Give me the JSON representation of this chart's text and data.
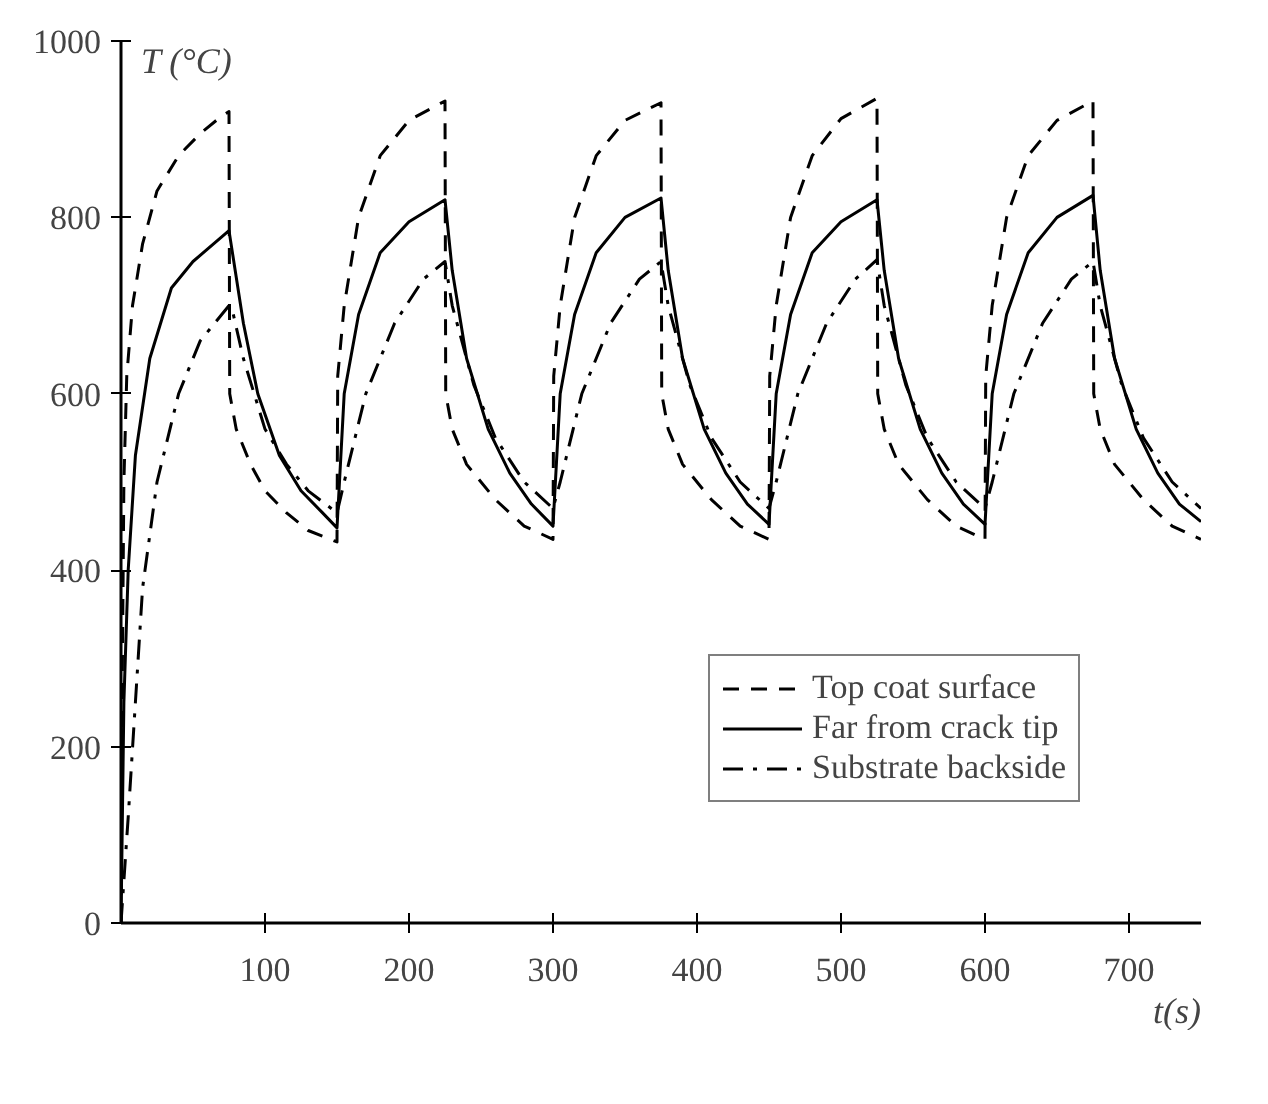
{
  "chart_data": {
    "type": "line",
    "xlabel": "t(s)",
    "ylabel": "T (°C)",
    "xlim": [
      0,
      750
    ],
    "ylim": [
      0,
      1000
    ],
    "xticks": [
      100,
      200,
      300,
      400,
      500,
      600,
      700
    ],
    "yticks": [
      0,
      200,
      400,
      600,
      800,
      1000
    ],
    "grid": false,
    "legend": "bottom right",
    "series": [
      {
        "name": "Top coat surface",
        "color": "#000000",
        "line_style": "dashed",
        "x": [
          0,
          1,
          2,
          4,
          8,
          15,
          25,
          40,
          55,
          70,
          75,
          75.5,
          80,
          90,
          100,
          115,
          130,
          150,
          150.5,
          155,
          165,
          180,
          200,
          225,
          225.5,
          230,
          240,
          260,
          280,
          300,
          300.5,
          305,
          315,
          330,
          350,
          375,
          375.5,
          380,
          390,
          410,
          430,
          450,
          450.5,
          455,
          465,
          480,
          500,
          525,
          525.5,
          530,
          540,
          560,
          580,
          600,
          600.5,
          605,
          615,
          630,
          650,
          675,
          675.5,
          680,
          690,
          710,
          730,
          750
        ],
        "values": [
          0,
          300,
          500,
          620,
          700,
          770,
          830,
          870,
          895,
          915,
          920,
          600,
          560,
          520,
          490,
          465,
          445,
          432,
          620,
          700,
          800,
          870,
          910,
          932,
          600,
          560,
          520,
          480,
          450,
          435,
          620,
          700,
          800,
          870,
          910,
          930,
          600,
          560,
          520,
          480,
          450,
          435,
          620,
          700,
          800,
          870,
          912,
          935,
          600,
          560,
          520,
          480,
          450,
          435,
          620,
          700,
          800,
          870,
          910,
          932,
          600,
          560,
          520,
          480,
          450,
          435
        ]
      },
      {
        "name": "Far from crack tip",
        "color": "#000000",
        "line_style": "solid",
        "x": [
          0,
          2,
          5,
          10,
          20,
          35,
          50,
          75,
          85,
          95,
          110,
          125,
          140,
          150,
          155,
          165,
          180,
          200,
          225,
          230,
          240,
          255,
          270,
          285,
          300,
          305,
          315,
          330,
          350,
          375,
          380,
          390,
          405,
          420,
          435,
          450,
          455,
          465,
          480,
          500,
          525,
          530,
          540,
          555,
          570,
          585,
          600,
          605,
          615,
          630,
          650,
          675,
          680,
          690,
          705,
          720,
          735,
          750
        ],
        "values": [
          0,
          250,
          400,
          530,
          640,
          720,
          750,
          785,
          680,
          600,
          530,
          490,
          465,
          448,
          600,
          690,
          760,
          795,
          820,
          740,
          640,
          560,
          510,
          475,
          450,
          600,
          690,
          760,
          800,
          822,
          740,
          640,
          560,
          510,
          475,
          452,
          600,
          690,
          760,
          795,
          820,
          740,
          640,
          560,
          510,
          475,
          452,
          600,
          690,
          760,
          800,
          825,
          740,
          640,
          560,
          510,
          475,
          455
        ]
      },
      {
        "name": "Substrate backside",
        "color": "#000000",
        "line_style": "dashdot",
        "x": [
          0,
          5,
          10,
          15,
          25,
          40,
          55,
          75,
          78,
          85,
          100,
          115,
          130,
          150,
          155,
          170,
          190,
          210,
          225,
          230,
          245,
          260,
          280,
          300,
          305,
          320,
          340,
          360,
          375,
          380,
          395,
          410,
          430,
          450,
          455,
          470,
          490,
          510,
          525,
          530,
          545,
          560,
          580,
          600,
          605,
          620,
          640,
          660,
          675,
          680,
          695,
          710,
          730,
          750
        ],
        "values": [
          0,
          120,
          250,
          380,
          500,
          600,
          660,
          700,
          690,
          640,
          560,
          520,
          490,
          465,
          500,
          600,
          680,
          730,
          750,
          700,
          610,
          550,
          500,
          470,
          500,
          600,
          680,
          730,
          750,
          700,
          610,
          550,
          500,
          470,
          500,
          600,
          680,
          730,
          752,
          700,
          610,
          550,
          500,
          470,
          500,
          600,
          680,
          730,
          750,
          700,
          610,
          550,
          500,
          470
        ]
      }
    ]
  }
}
